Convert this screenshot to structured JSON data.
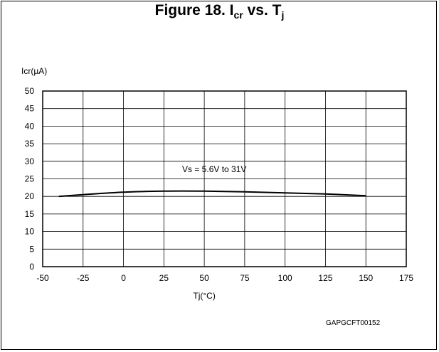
{
  "figure": {
    "title_prefix": "Figure 18. I",
    "title_sub1": "cr",
    "title_mid": " vs. T",
    "title_sub2": "j",
    "footer_code": "GAPGCFT00152"
  },
  "chart_data": {
    "type": "line",
    "title": "Figure 18. Icr vs. Tj",
    "xlabel": "Tj(°C)",
    "ylabel": "Icr(µA)",
    "xlim": [
      -50,
      175
    ],
    "ylim": [
      0,
      50
    ],
    "xticks": [
      -50,
      -25,
      0,
      25,
      50,
      75,
      100,
      125,
      150,
      175
    ],
    "yticks": [
      0,
      5,
      10,
      15,
      20,
      25,
      30,
      35,
      40,
      45,
      50
    ],
    "grid": true,
    "annotation": "Vs = 5.6V to 31V",
    "series": [
      {
        "name": "Vs = 5.6V to 31V",
        "color": "#000000",
        "x": [
          -40,
          -25,
          0,
          25,
          50,
          75,
          100,
          125,
          150
        ],
        "y": [
          20.0,
          20.5,
          21.2,
          21.5,
          21.5,
          21.3,
          21.0,
          20.7,
          20.2
        ]
      }
    ]
  }
}
